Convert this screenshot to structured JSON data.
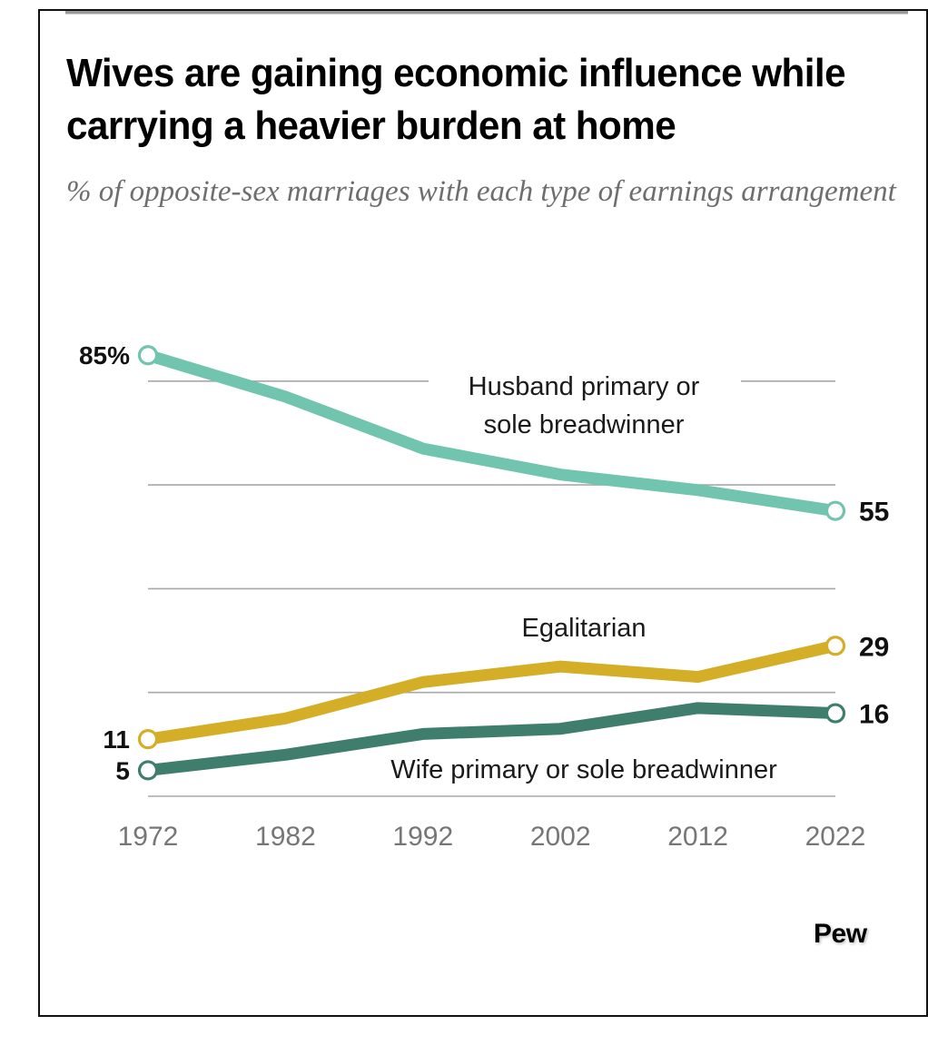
{
  "header": {
    "title": "Wives are gaining economic influence while carrying a heavier burden at home",
    "subtitle": "% of opposite-sex marriages with each type of earnings arrangement"
  },
  "source_logo": "Pew",
  "colors": {
    "husband": "#71c4ae",
    "egalitarian": "#d4ae27",
    "wife": "#3f7d6c",
    "grid": "#a8a8a8",
    "tick_text": "#767676"
  },
  "chart_data": {
    "type": "line",
    "title": "Wives are gaining economic influence while carrying a heavier burden at home",
    "subtitle": "% of opposite-sex marriages with each type of earnings arrangement",
    "xlabel": "",
    "ylabel": "",
    "x": [
      "1972",
      "1982",
      "1992",
      "2002",
      "2012",
      "2022"
    ],
    "ylim": [
      0,
      90
    ],
    "y_gridlines": [
      0,
      20,
      40,
      60,
      80
    ],
    "grid": true,
    "y_axis_labels_shown": false,
    "legend": "inline labels",
    "series": [
      {
        "name": "Husband primary or sole breadwinner",
        "key": "husband",
        "values": [
          85,
          77,
          67,
          62,
          59,
          55
        ],
        "start_label": "85%",
        "end_label": "55"
      },
      {
        "name": "Egalitarian",
        "key": "egalitarian",
        "values": [
          11,
          15,
          22,
          25,
          23,
          29
        ],
        "start_label": "11",
        "end_label": "29"
      },
      {
        "name": "Wife primary or sole breadwinner",
        "key": "wife",
        "values": [
          5,
          8,
          12,
          13,
          17,
          16
        ],
        "start_label": "5",
        "end_label": "16"
      }
    ],
    "annotations": [
      {
        "text_lines": [
          "Husband primary or",
          "sole breadwinner"
        ],
        "series": "husband"
      },
      {
        "text_lines": [
          "Egalitarian"
        ],
        "series": "egalitarian"
      },
      {
        "text_lines": [
          "Wife primary or sole breadwinner"
        ],
        "series": "wife"
      }
    ]
  }
}
